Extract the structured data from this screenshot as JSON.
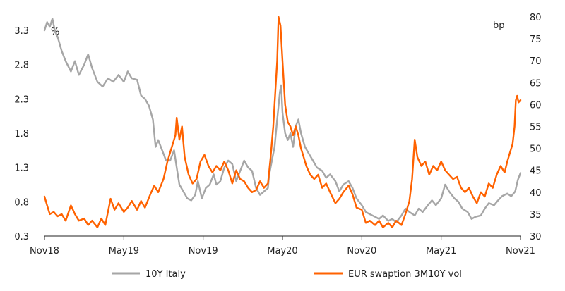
{
  "chart_data": {
    "type": "line",
    "title": "",
    "xlabel": "",
    "ylabel_left": "%",
    "ylabel_right": "bp",
    "x_tick_labels": [
      "Nov18",
      "May19",
      "Nov19",
      "May20",
      "Nov20",
      "May21",
      "Nov21"
    ],
    "x_range": [
      0,
      36
    ],
    "y_left_ticks": [
      "3.3",
      "2.8",
      "2.3",
      "1.8",
      "1.3",
      "0.8",
      "0.3"
    ],
    "y_left_range": [
      0.3,
      3.5
    ],
    "y_right_ticks": [
      "80",
      "75",
      "70",
      "65",
      "60",
      "55",
      "50",
      "45",
      "40",
      "35",
      "30"
    ],
    "y_right_range": [
      30,
      80
    ],
    "grid": false,
    "legend_position": "bottom",
    "series": [
      {
        "name": "10Y Italy",
        "axis": "left",
        "color": "#a6a6a6",
        "points": [
          [
            0.0,
            3.3
          ],
          [
            0.2,
            3.42
          ],
          [
            0.4,
            3.35
          ],
          [
            0.6,
            3.47
          ],
          [
            0.8,
            3.28
          ],
          [
            1.0,
            3.2
          ],
          [
            1.3,
            3.0
          ],
          [
            1.6,
            2.85
          ],
          [
            2.0,
            2.7
          ],
          [
            2.3,
            2.85
          ],
          [
            2.6,
            2.65
          ],
          [
            3.0,
            2.8
          ],
          [
            3.3,
            2.95
          ],
          [
            3.6,
            2.75
          ],
          [
            4.0,
            2.55
          ],
          [
            4.4,
            2.48
          ],
          [
            4.8,
            2.6
          ],
          [
            5.2,
            2.55
          ],
          [
            5.6,
            2.65
          ],
          [
            6.0,
            2.55
          ],
          [
            6.3,
            2.7
          ],
          [
            6.6,
            2.6
          ],
          [
            7.0,
            2.58
          ],
          [
            7.3,
            2.35
          ],
          [
            7.6,
            2.3
          ],
          [
            7.9,
            2.2
          ],
          [
            8.2,
            2.0
          ],
          [
            8.4,
            1.6
          ],
          [
            8.6,
            1.7
          ],
          [
            8.9,
            1.55
          ],
          [
            9.2,
            1.4
          ],
          [
            9.5,
            1.4
          ],
          [
            9.8,
            1.55
          ],
          [
            10.0,
            1.3
          ],
          [
            10.2,
            1.05
          ],
          [
            10.5,
            0.95
          ],
          [
            10.8,
            0.85
          ],
          [
            11.1,
            0.82
          ],
          [
            11.4,
            0.9
          ],
          [
            11.6,
            1.1
          ],
          [
            11.9,
            0.85
          ],
          [
            12.2,
            1.0
          ],
          [
            12.5,
            1.05
          ],
          [
            12.8,
            1.2
          ],
          [
            13.0,
            1.05
          ],
          [
            13.3,
            1.1
          ],
          [
            13.6,
            1.3
          ],
          [
            13.9,
            1.4
          ],
          [
            14.2,
            1.35
          ],
          [
            14.5,
            1.1
          ],
          [
            14.8,
            1.25
          ],
          [
            15.1,
            1.4
          ],
          [
            15.4,
            1.3
          ],
          [
            15.7,
            1.25
          ],
          [
            16.0,
            1.0
          ],
          [
            16.3,
            0.9
          ],
          [
            16.6,
            0.95
          ],
          [
            16.9,
            1.0
          ],
          [
            17.0,
            1.2
          ],
          [
            17.2,
            1.4
          ],
          [
            17.4,
            1.6
          ],
          [
            17.6,
            2.0
          ],
          [
            17.8,
            2.4
          ],
          [
            17.9,
            2.5
          ],
          [
            18.0,
            2.1
          ],
          [
            18.2,
            1.8
          ],
          [
            18.4,
            1.7
          ],
          [
            18.6,
            1.8
          ],
          [
            18.8,
            1.6
          ],
          [
            19.0,
            1.9
          ],
          [
            19.2,
            2.0
          ],
          [
            19.4,
            1.8
          ],
          [
            19.7,
            1.6
          ],
          [
            20.0,
            1.5
          ],
          [
            20.3,
            1.4
          ],
          [
            20.6,
            1.3
          ],
          [
            21.0,
            1.25
          ],
          [
            21.3,
            1.15
          ],
          [
            21.6,
            1.2
          ],
          [
            22.0,
            1.1
          ],
          [
            22.3,
            0.95
          ],
          [
            22.6,
            1.05
          ],
          [
            23.0,
            1.1
          ],
          [
            23.3,
            1.0
          ],
          [
            23.6,
            0.85
          ],
          [
            24.0,
            0.75
          ],
          [
            24.3,
            0.65
          ],
          [
            24.6,
            0.62
          ],
          [
            25.0,
            0.58
          ],
          [
            25.3,
            0.55
          ],
          [
            25.6,
            0.6
          ],
          [
            26.0,
            0.52
          ],
          [
            26.3,
            0.55
          ],
          [
            26.6,
            0.5
          ],
          [
            27.0,
            0.6
          ],
          [
            27.3,
            0.7
          ],
          [
            27.6,
            0.65
          ],
          [
            28.0,
            0.6
          ],
          [
            28.3,
            0.7
          ],
          [
            28.6,
            0.65
          ],
          [
            29.0,
            0.75
          ],
          [
            29.3,
            0.82
          ],
          [
            29.6,
            0.75
          ],
          [
            30.0,
            0.85
          ],
          [
            30.3,
            1.05
          ],
          [
            30.6,
            0.95
          ],
          [
            31.0,
            0.85
          ],
          [
            31.3,
            0.8
          ],
          [
            31.6,
            0.7
          ],
          [
            32.0,
            0.65
          ],
          [
            32.3,
            0.55
          ],
          [
            32.6,
            0.58
          ],
          [
            33.0,
            0.6
          ],
          [
            33.3,
            0.7
          ],
          [
            33.6,
            0.78
          ],
          [
            34.0,
            0.75
          ],
          [
            34.3,
            0.82
          ],
          [
            34.6,
            0.88
          ],
          [
            35.0,
            0.92
          ],
          [
            35.3,
            0.88
          ],
          [
            35.6,
            0.95
          ],
          [
            35.8,
            1.12
          ],
          [
            36.0,
            1.22
          ]
        ]
      },
      {
        "name": "EUR swaption 3M10Y vol",
        "axis": "right",
        "color": "#ff6200",
        "points": [
          [
            0.0,
            39.0
          ],
          [
            0.2,
            37.0
          ],
          [
            0.4,
            35.0
          ],
          [
            0.7,
            35.5
          ],
          [
            1.0,
            34.5
          ],
          [
            1.3,
            35.0
          ],
          [
            1.6,
            33.5
          ],
          [
            2.0,
            37.0
          ],
          [
            2.3,
            35.0
          ],
          [
            2.6,
            33.5
          ],
          [
            3.0,
            34.0
          ],
          [
            3.3,
            32.5
          ],
          [
            3.6,
            33.5
          ],
          [
            4.0,
            32.0
          ],
          [
            4.3,
            34.0
          ],
          [
            4.6,
            32.5
          ],
          [
            5.0,
            38.5
          ],
          [
            5.3,
            36.0
          ],
          [
            5.6,
            37.5
          ],
          [
            6.0,
            35.5
          ],
          [
            6.3,
            36.5
          ],
          [
            6.6,
            38.0
          ],
          [
            7.0,
            36.0
          ],
          [
            7.3,
            38.0
          ],
          [
            7.6,
            36.5
          ],
          [
            8.0,
            39.5
          ],
          [
            8.3,
            41.5
          ],
          [
            8.6,
            40.0
          ],
          [
            9.0,
            43.0
          ],
          [
            9.3,
            47.0
          ],
          [
            9.6,
            50.0
          ],
          [
            9.9,
            53.0
          ],
          [
            10.0,
            57.0
          ],
          [
            10.2,
            52.0
          ],
          [
            10.4,
            55.0
          ],
          [
            10.6,
            48.0
          ],
          [
            10.9,
            44.0
          ],
          [
            11.2,
            42.0
          ],
          [
            11.5,
            43.0
          ],
          [
            11.8,
            47.0
          ],
          [
            12.1,
            48.5
          ],
          [
            12.4,
            46.0
          ],
          [
            12.7,
            44.5
          ],
          [
            13.0,
            46.0
          ],
          [
            13.3,
            45.0
          ],
          [
            13.6,
            47.0
          ],
          [
            13.9,
            45.0
          ],
          [
            14.2,
            42.0
          ],
          [
            14.5,
            45.0
          ],
          [
            14.8,
            43.0
          ],
          [
            15.1,
            42.5
          ],
          [
            15.4,
            41.0
          ],
          [
            15.7,
            40.0
          ],
          [
            16.0,
            40.5
          ],
          [
            16.3,
            42.5
          ],
          [
            16.6,
            41.0
          ],
          [
            16.9,
            42.0
          ],
          [
            17.1,
            48.0
          ],
          [
            17.3,
            55.0
          ],
          [
            17.5,
            65.0
          ],
          [
            17.6,
            70.0
          ],
          [
            17.7,
            80.0
          ],
          [
            17.85,
            78.0
          ],
          [
            18.0,
            70.0
          ],
          [
            18.2,
            60.0
          ],
          [
            18.4,
            56.0
          ],
          [
            18.6,
            55.0
          ],
          [
            18.8,
            53.0
          ],
          [
            19.0,
            55.0
          ],
          [
            19.2,
            53.0
          ],
          [
            19.4,
            50.0
          ],
          [
            19.6,
            48.0
          ],
          [
            19.8,
            46.0
          ],
          [
            20.1,
            44.0
          ],
          [
            20.4,
            43.0
          ],
          [
            20.7,
            44.0
          ],
          [
            21.0,
            41.0
          ],
          [
            21.3,
            42.0
          ],
          [
            21.6,
            40.0
          ],
          [
            22.0,
            37.5
          ],
          [
            22.3,
            38.5
          ],
          [
            22.6,
            40.0
          ],
          [
            23.0,
            41.5
          ],
          [
            23.3,
            39.5
          ],
          [
            23.6,
            36.5
          ],
          [
            24.0,
            36.0
          ],
          [
            24.3,
            33.0
          ],
          [
            24.6,
            33.5
          ],
          [
            25.0,
            32.5
          ],
          [
            25.3,
            33.5
          ],
          [
            25.6,
            32.0
          ],
          [
            26.0,
            33.0
          ],
          [
            26.3,
            32.0
          ],
          [
            26.6,
            33.5
          ],
          [
            27.0,
            32.5
          ],
          [
            27.3,
            35.0
          ],
          [
            27.6,
            38.0
          ],
          [
            27.8,
            43.0
          ],
          [
            28.0,
            52.0
          ],
          [
            28.2,
            48.0
          ],
          [
            28.5,
            46.0
          ],
          [
            28.8,
            47.0
          ],
          [
            29.1,
            44.0
          ],
          [
            29.4,
            46.0
          ],
          [
            29.7,
            45.0
          ],
          [
            30.0,
            47.0
          ],
          [
            30.3,
            45.0
          ],
          [
            30.6,
            44.0
          ],
          [
            30.9,
            43.0
          ],
          [
            31.2,
            43.5
          ],
          [
            31.5,
            41.0
          ],
          [
            31.8,
            40.0
          ],
          [
            32.1,
            41.0
          ],
          [
            32.4,
            39.0
          ],
          [
            32.7,
            37.5
          ],
          [
            33.0,
            40.0
          ],
          [
            33.3,
            39.0
          ],
          [
            33.6,
            42.0
          ],
          [
            33.9,
            41.0
          ],
          [
            34.2,
            44.0
          ],
          [
            34.5,
            46.0
          ],
          [
            34.8,
            44.5
          ],
          [
            35.0,
            47.0
          ],
          [
            35.2,
            49.0
          ],
          [
            35.4,
            51.0
          ],
          [
            35.55,
            55.0
          ],
          [
            35.65,
            61.0
          ],
          [
            35.75,
            62.0
          ],
          [
            35.85,
            60.5
          ],
          [
            36.0,
            61.0
          ]
        ]
      }
    ]
  }
}
